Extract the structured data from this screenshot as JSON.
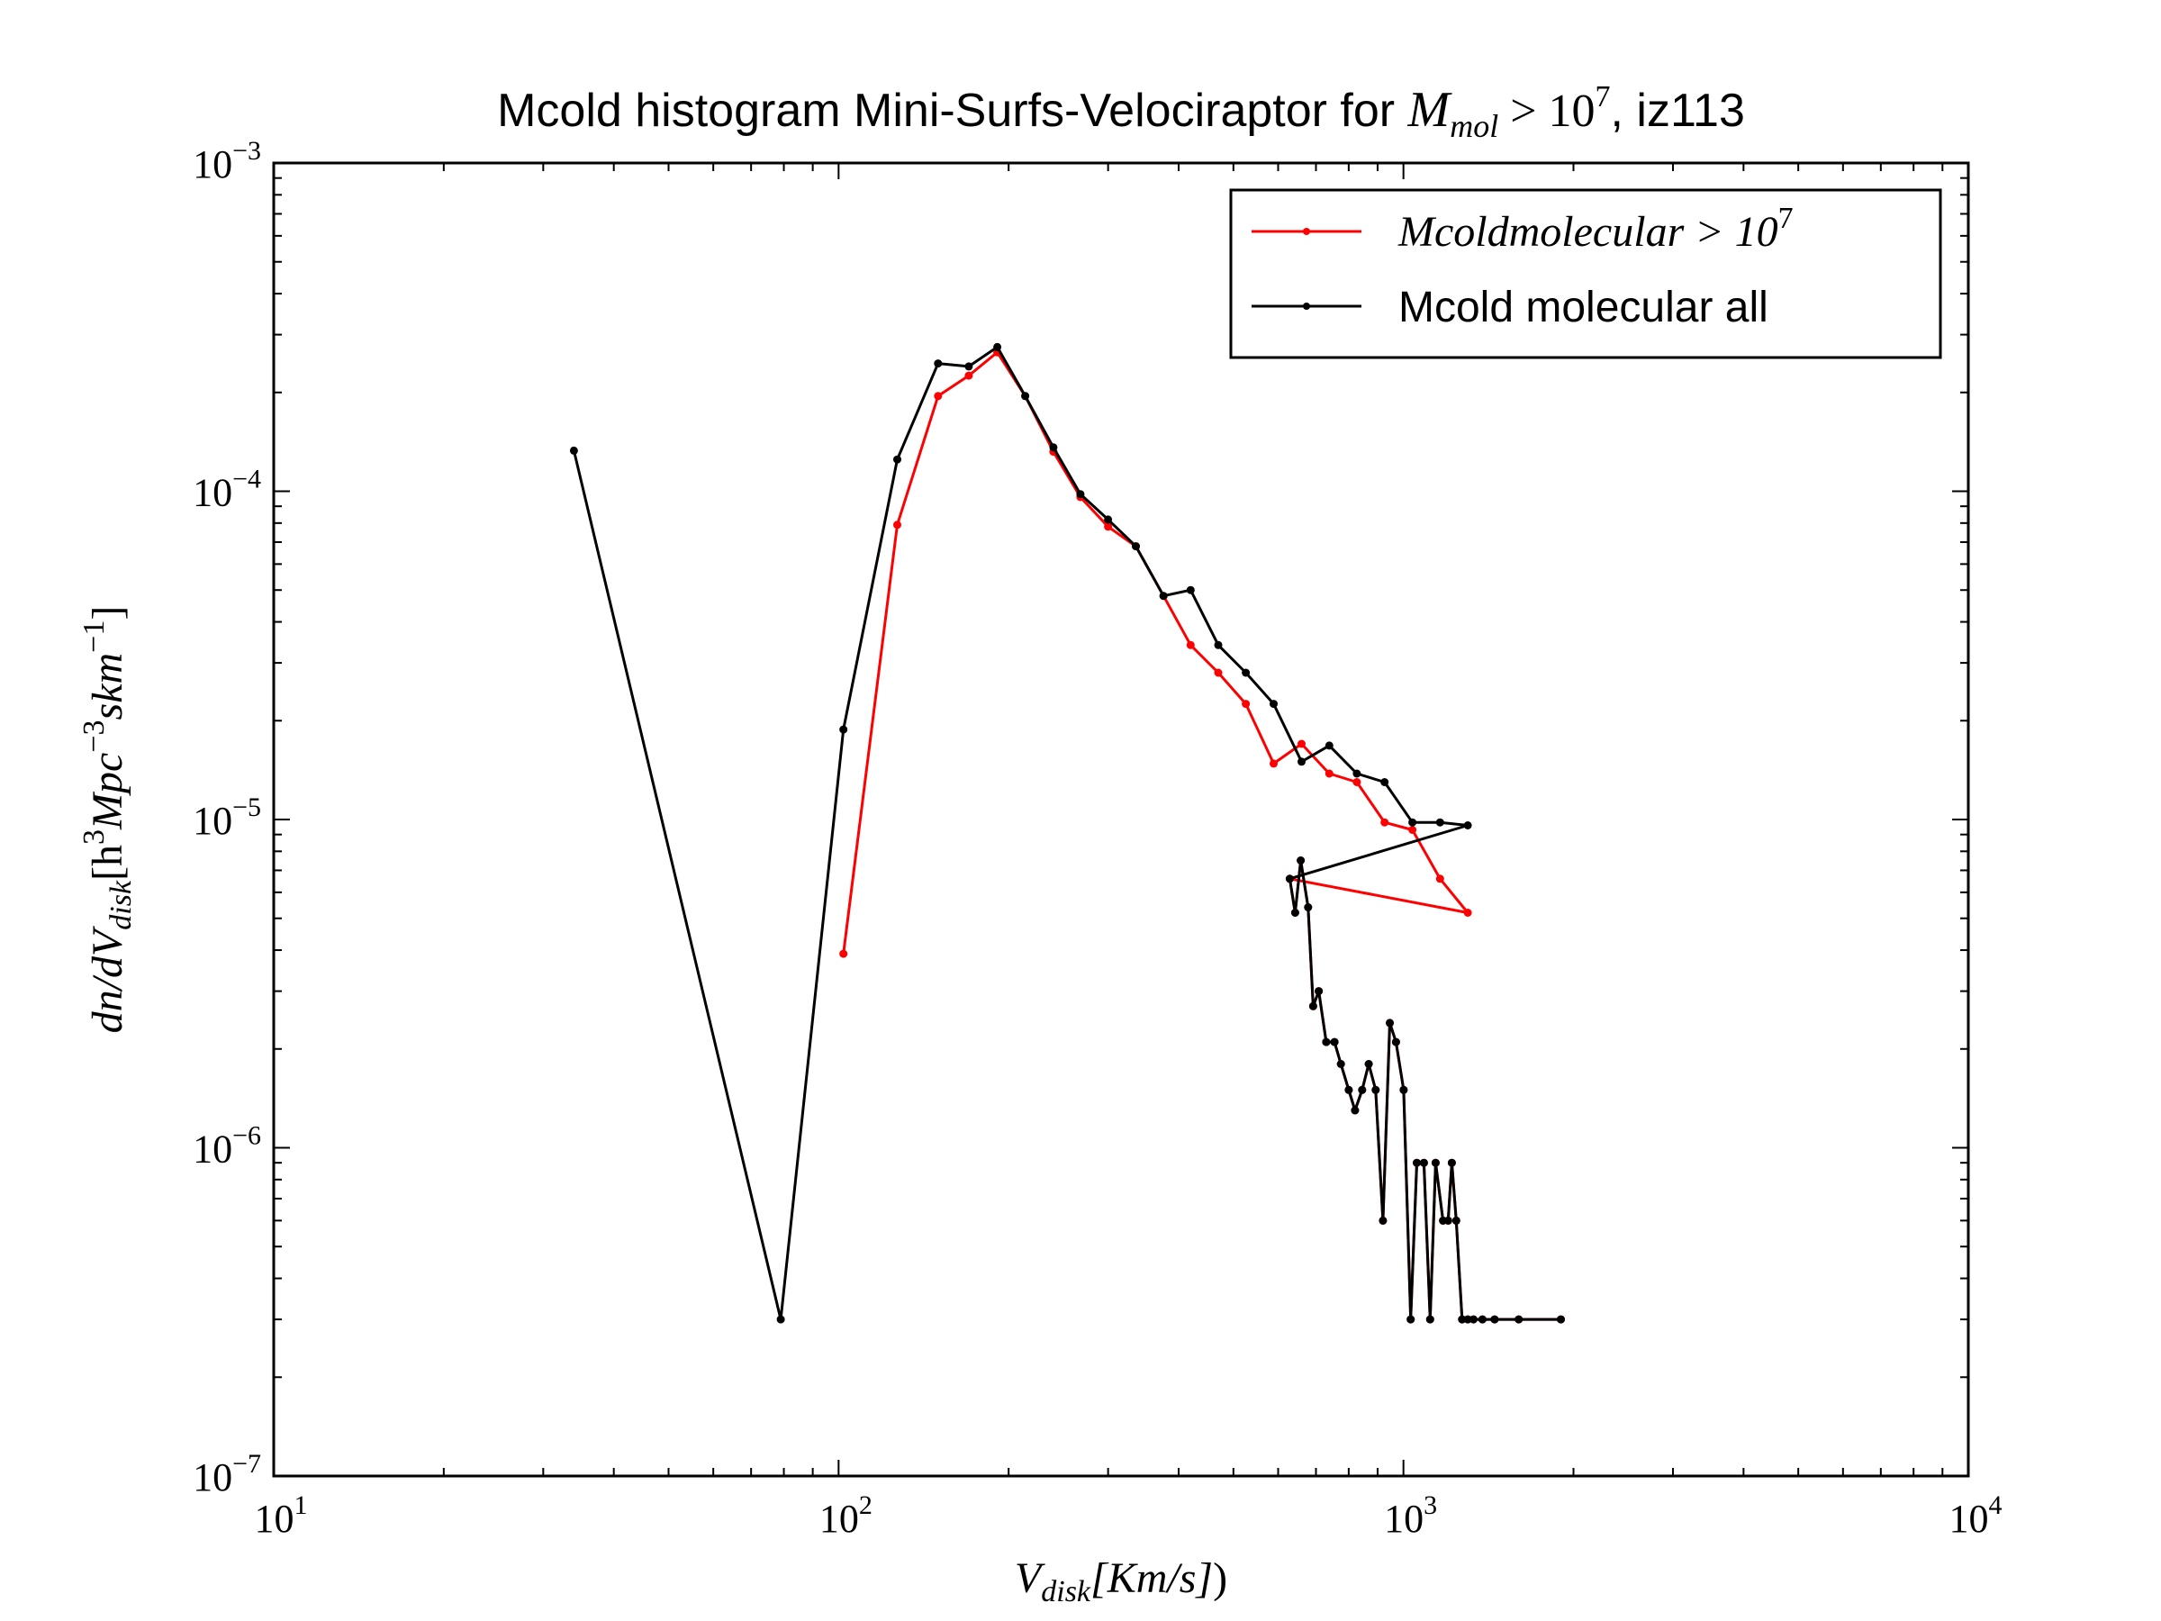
{
  "chart_data": {
    "type": "line",
    "title": {
      "text_before": "Mcold histogram Mini-Surfs-Velociraptor for ",
      "math_base": "M",
      "math_sub": "mol",
      "math_rel": " > 10",
      "math_sup": "7",
      "text_after": ", iz113"
    },
    "xlabel": {
      "base": "V",
      "sub": "disk",
      "rest": "[Km/s]",
      "tail": ")"
    },
    "ylabel": {
      "p1": "dn/dV",
      "sub1": "disk",
      "p2": "[h",
      "sup1": "3",
      "p3": "Mpc",
      "sup2": "−3",
      "p4": "skm",
      "sup3": "−1",
      "p5": "]"
    },
    "xscale": "log",
    "yscale": "log",
    "xlim": [
      10,
      10000
    ],
    "ylim": [
      1e-07,
      0.001
    ],
    "xticks": [
      {
        "base": "10",
        "exp": "1",
        "value": 10
      },
      {
        "base": "10",
        "exp": "2",
        "value": 100
      },
      {
        "base": "10",
        "exp": "3",
        "value": 1000
      },
      {
        "base": "10",
        "exp": "4",
        "value": 10000
      }
    ],
    "yticks": [
      {
        "base": "10",
        "exp": "−7",
        "value": 1e-07
      },
      {
        "base": "10",
        "exp": "−6",
        "value": 1e-06
      },
      {
        "base": "10",
        "exp": "−5",
        "value": 1e-05
      },
      {
        "base": "10",
        "exp": "−4",
        "value": 0.0001
      },
      {
        "base": "10",
        "exp": "−3",
        "value": 0.001
      }
    ],
    "grid": false,
    "legend_position": "top-right",
    "legend": [
      {
        "base": "Mcoldmolecular > 10",
        "sup": "7"
      },
      {
        "text": "Mcold molecular all"
      }
    ],
    "series": [
      {
        "color": "#ff0000",
        "x": [
          102,
          127,
          150,
          170,
          191,
          214,
          240,
          268,
          300,
          336,
          376,
          420,
          470,
          526,
          589,
          660,
          739,
          827,
          926,
          1037,
          1161,
          1300
        ],
        "y": [
          3.9e-06,
          7.9e-05,
          0.000195,
          0.000225,
          0.000265,
          0.000195,
          0.000132,
          9.6e-05,
          7.8e-05,
          6.8e-05,
          4.8e-05,
          3.4e-05,
          2.8e-05,
          2.25e-05,
          1.48e-05,
          1.7e-05,
          1.38e-05,
          1.3e-05,
          9.8e-06,
          9.3e-06,
          6.6e-06,
          5.2e-06
        ]
      },
      {
        "color": "#000000",
        "x": [
          34,
          79,
          102,
          127,
          150,
          170,
          191,
          214,
          240,
          268,
          300,
          336,
          376,
          420,
          470,
          526,
          589,
          660,
          739,
          827,
          926,
          1037,
          1161,
          1300
        ],
        "y": [
          0.000133,
          3e-07,
          1.88e-05,
          0.000125,
          0.000245,
          0.00024,
          0.000275,
          0.000195,
          0.000136,
          9.8e-05,
          8.2e-05,
          6.8e-05,
          4.8e-05,
          5e-05,
          3.4e-05,
          2.8e-05,
          2.25e-05,
          1.5e-05,
          1.68e-05,
          1.38e-05,
          1.3e-05,
          9.8e-06,
          9.8e-06,
          9.6e-06
        ]
      }
    ],
    "shared_tail": {
      "x": [
        629,
        643,
        658,
        678,
        692,
        708,
        730,
        755,
        775,
        800,
        821,
        845,
        868,
        893,
        920,
        946,
        970,
        1001,
        1030,
        1056,
        1087,
        1115,
        1140,
        1175,
        1200,
        1218,
        1240,
        1270,
        1300,
        1330,
        1380,
        1450,
        1600,
        1900
      ],
      "y": [
        6.6e-06,
        5.2e-06,
        7.5e-06,
        5.4e-06,
        2.7e-06,
        3e-06,
        2.1e-06,
        2.1e-06,
        1.8e-06,
        1.5e-06,
        1.3e-06,
        1.5e-06,
        1.8e-06,
        1.5e-06,
        6e-07,
        2.4e-06,
        2.1e-06,
        1.5e-06,
        3e-07,
        9e-07,
        9e-07,
        3e-07,
        9e-07,
        6e-07,
        6e-07,
        9e-07,
        6e-07,
        3e-07,
        3e-07,
        3e-07,
        3e-07,
        3e-07,
        3e-07,
        3e-07
      ]
    }
  }
}
